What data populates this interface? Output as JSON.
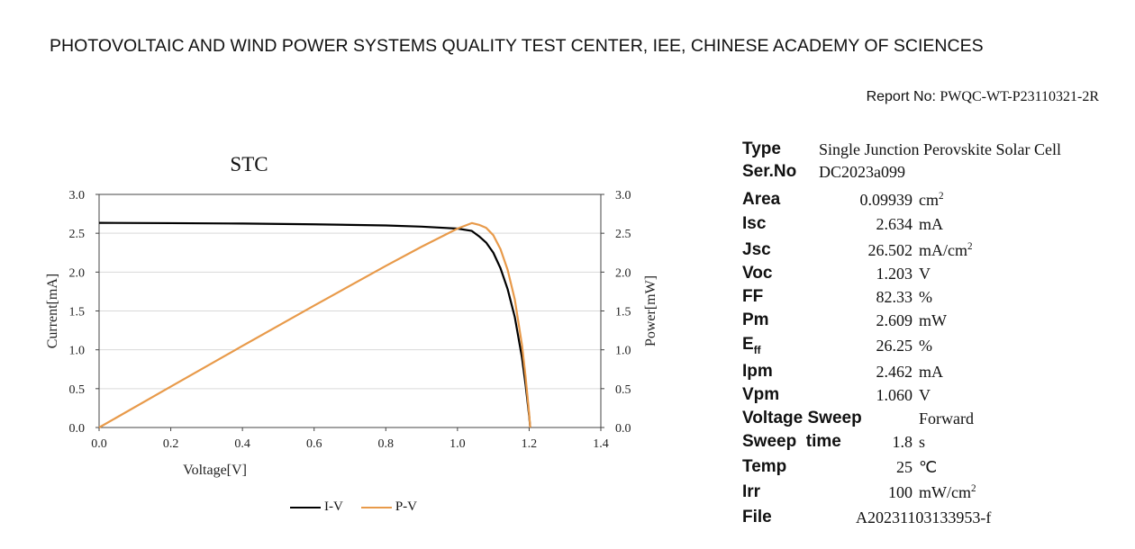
{
  "header": {
    "title": "PHOTOVOLTAIC AND WIND POWER SYSTEMS QUALITY TEST CENTER, IEE, CHINESE ACADEMY OF SCIENCES",
    "report_label": "Report No:",
    "report_value": "PWQC-WT-P23110321-2R"
  },
  "chart_data": {
    "type": "line",
    "title": "STC",
    "xlabel": "Voltage[V]",
    "ylabel": "Current[mA]",
    "y2label": "Power[mW]",
    "xlim": [
      0,
      1.4
    ],
    "ylim": [
      0,
      3.0
    ],
    "y2lim": [
      0,
      3.0
    ],
    "xticks": [
      "0.0",
      "0.2",
      "0.4",
      "0.6",
      "0.8",
      "1.0",
      "1.2",
      "1.4"
    ],
    "yticks": [
      "0.0",
      "0.5",
      "1.0",
      "1.5",
      "2.0",
      "2.5",
      "3.0"
    ],
    "y2ticks": [
      "0.0",
      "0.5",
      "1.0",
      "1.5",
      "2.0",
      "2.5",
      "3.0"
    ],
    "grid": true,
    "legend_position": "bottom",
    "series": [
      {
        "name": "I-V",
        "color": "#000000",
        "axis": "left",
        "x": [
          0.0,
          0.2,
          0.4,
          0.6,
          0.8,
          0.9,
          1.0,
          1.04,
          1.06,
          1.08,
          1.1,
          1.12,
          1.14,
          1.16,
          1.18,
          1.19,
          1.2,
          1.203
        ],
        "y": [
          2.634,
          2.63,
          2.625,
          2.615,
          2.6,
          2.585,
          2.56,
          2.53,
          2.462,
          2.38,
          2.25,
          2.05,
          1.78,
          1.42,
          0.9,
          0.55,
          0.15,
          0.0
        ]
      },
      {
        "name": "P-V",
        "color": "#e89a4a",
        "axis": "right",
        "x": [
          0.0,
          0.2,
          0.4,
          0.6,
          0.8,
          0.9,
          1.0,
          1.04,
          1.06,
          1.08,
          1.1,
          1.12,
          1.14,
          1.16,
          1.18,
          1.19,
          1.2,
          1.203
        ],
        "y": [
          0.0,
          0.526,
          1.05,
          1.569,
          2.08,
          2.327,
          2.56,
          2.631,
          2.609,
          2.57,
          2.475,
          2.296,
          2.029,
          1.647,
          1.062,
          0.655,
          0.18,
          0.0
        ]
      }
    ]
  },
  "specs": {
    "type_label": "Type",
    "type_value": "Single Junction Perovskite Solar Cell",
    "serno_label": "Ser.No",
    "serno_value": "DC2023a099",
    "area_label": "Area",
    "area_value": "0.09939",
    "area_unit": "cm",
    "area_unit_sup": "2",
    "isc_label": "Isc",
    "isc_value": "2.634",
    "isc_unit": "mA",
    "jsc_label": "Jsc",
    "jsc_value": "26.502",
    "jsc_unit": "mA/cm",
    "jsc_unit_sup": "2",
    "voc_label": "Voc",
    "voc_value": "1.203",
    "voc_unit": "V",
    "ff_label": "FF",
    "ff_value": "82.33",
    "ff_unit": "%",
    "pm_label": "Pm",
    "pm_value": "2.609",
    "pm_unit": "mW",
    "eff_label": "E",
    "eff_label_sub": "ff",
    "eff_value": "26.25",
    "eff_unit": "%",
    "ipm_label": "Ipm",
    "ipm_value": "2.462",
    "ipm_unit": "mA",
    "vpm_label": "Vpm",
    "vpm_value": "1.060",
    "vpm_unit": "V",
    "sweep_label": "Voltage Sweep",
    "sweep_value": "Forward",
    "sweeptime_label": "Sweep  time",
    "sweeptime_value": "1.8",
    "sweeptime_unit": "s",
    "temp_label": "Temp",
    "temp_value": "25",
    "temp_unit": "℃",
    "irr_label": "Irr",
    "irr_value": "100",
    "irr_unit": "mW/cm",
    "irr_unit_sup": "2",
    "file_label": "File",
    "file_value": "A20231103133953-f"
  }
}
